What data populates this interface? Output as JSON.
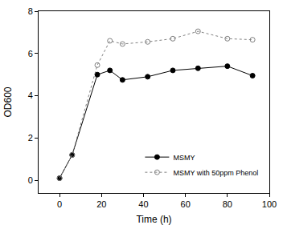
{
  "chart_data": {
    "type": "line",
    "x_label": "Time (h)",
    "y_label": "OD600",
    "xlim": [
      -10,
      100
    ],
    "xticks": [
      0,
      20,
      40,
      60,
      80,
      100
    ],
    "ylim": [
      -0.6,
      8
    ],
    "yticks": [
      0,
      2,
      4,
      6,
      8
    ],
    "grid": false,
    "legend": "lower right",
    "x": [
      0,
      6,
      18,
      24,
      30,
      42,
      54,
      66,
      80,
      92
    ],
    "series": [
      {
        "name": "MSMY",
        "color": "#000000",
        "marker": "circle",
        "line_style": "solid",
        "values": [
          0.1,
          1.2,
          5.0,
          5.2,
          4.75,
          4.9,
          5.2,
          5.3,
          5.4,
          4.95
        ]
      },
      {
        "name": "MSMY with 50ppm Phenol",
        "color": "#808080",
        "marker": "circle-open",
        "line_style": "dot",
        "values": [
          0.1,
          1.2,
          5.45,
          6.6,
          6.45,
          6.55,
          6.7,
          7.05,
          6.7,
          6.65
        ]
      }
    ]
  }
}
